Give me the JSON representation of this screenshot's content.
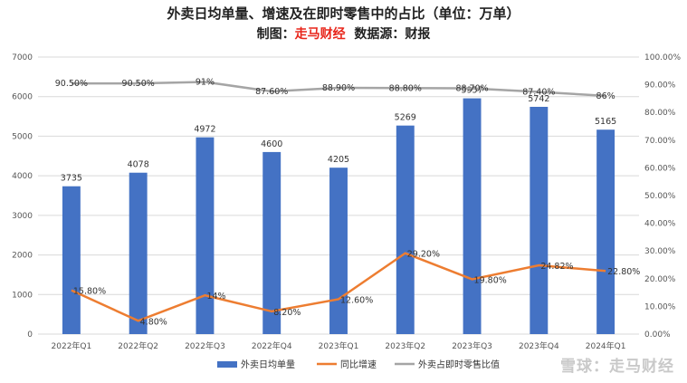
{
  "title": "外卖日均单量、增速及在即时零售中的占比（单位：万单）",
  "subtitle": {
    "prefix": "制图：",
    "brand": "走马财经",
    "source": "数据源：财报"
  },
  "watermark": "雪球：走马财经",
  "colors": {
    "bar": "#4472c4",
    "growth": "#ed7d31",
    "share": "#a5a5a5",
    "brand": "#e8261b"
  },
  "chart_data": {
    "type": "bar",
    "categories": [
      "2022年Q1",
      "2022年Q2",
      "2022年Q3",
      "2022年Q4",
      "2023年Q1",
      "2023年Q2",
      "2023年Q3",
      "2023年Q4",
      "2024年Q1"
    ],
    "ylim": [
      0,
      7000
    ],
    "y_ticks": [
      "0",
      "1000",
      "2000",
      "3000",
      "4000",
      "5000",
      "6000",
      "7000"
    ],
    "y2lim": [
      0,
      100
    ],
    "y2_ticks": [
      "0.00%",
      "10.00%",
      "20.00%",
      "30.00%",
      "40.00%",
      "50.00%",
      "60.00%",
      "70.00%",
      "80.00%",
      "90.00%",
      "100.00%"
    ],
    "grid": true,
    "legend_position": "bottom",
    "series": [
      {
        "name": "外卖日均单量",
        "type": "bar",
        "axis": "left",
        "values": [
          3735,
          4078,
          4972,
          4600,
          4205,
          5269,
          5957,
          5742,
          5165
        ],
        "labels": [
          "3735",
          "4078",
          "4972",
          "4600",
          "4205",
          "5269",
          "5957",
          "5742",
          "5165"
        ]
      },
      {
        "name": "同比增速",
        "type": "line",
        "axis": "right",
        "values": [
          15.8,
          4.8,
          14.0,
          8.2,
          12.6,
          29.2,
          19.8,
          24.82,
          22.8
        ],
        "labels": [
          "15.80%",
          "4.80%",
          "14%",
          "8.20%",
          "12.60%",
          "29.20%",
          "19.80%",
          "24.82%",
          "22.80%"
        ]
      },
      {
        "name": "外卖占即时零售比值",
        "type": "line",
        "axis": "right",
        "values": [
          90.5,
          90.5,
          91.0,
          87.6,
          88.9,
          88.8,
          88.7,
          87.4,
          86.0
        ],
        "labels": [
          "90.50%",
          "90.50%",
          "91%",
          "87.60%",
          "88.90%",
          "88.80%",
          "88.70%",
          "87.40%",
          "86%"
        ]
      }
    ]
  }
}
